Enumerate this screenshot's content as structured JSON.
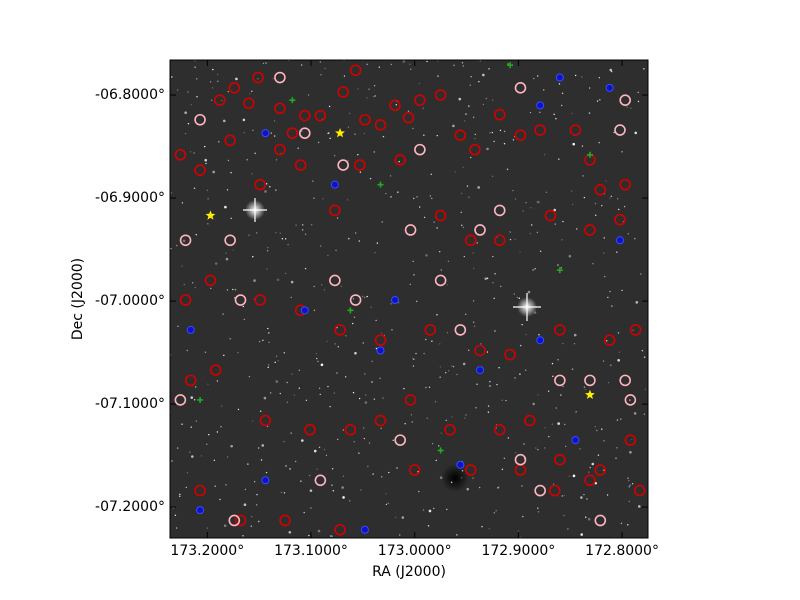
{
  "chart_data": {
    "type": "sky-overlay",
    "x_label": "RA (J2000)",
    "y_label": "Dec (J2000)",
    "xlim": [
      173.236,
      172.775
    ],
    "ylim": [
      -7.23,
      -6.766
    ],
    "xticks": [
      {
        "value": 173.2,
        "label": "173.2000°"
      },
      {
        "value": 173.1,
        "label": "173.1000°"
      },
      {
        "value": 173.0,
        "label": "173.0000°"
      },
      {
        "value": 172.9,
        "label": "172.9000°"
      },
      {
        "value": 172.8,
        "label": "172.8000°"
      }
    ],
    "yticks": [
      {
        "value": -6.8,
        "label": "-06.8000°"
      },
      {
        "value": -6.9,
        "label": "-06.9000°"
      },
      {
        "value": -7.0,
        "label": "-07.0000°"
      },
      {
        "value": -7.1,
        "label": "-07.1000°"
      },
      {
        "value": -7.2,
        "label": "-07.2000°"
      }
    ],
    "series": [
      {
        "color": "#d40000",
        "marker": "circle",
        "x": [
          173.188,
          173.174,
          173.16,
          173.151,
          173.13,
          173.118,
          173.106,
          173.091,
          173.069,
          173.057,
          173.048,
          173.033,
          173.019,
          173.006,
          172.995,
          172.975,
          172.956,
          172.942,
          172.918,
          172.898,
          172.879,
          172.845,
          172.831,
          172.821,
          172.797,
          173.226,
          173.207,
          173.178,
          173.149,
          173.13,
          173.11,
          173.077,
          173.053,
          173.014,
          172.975,
          172.946,
          172.918,
          172.869,
          172.831,
          172.802,
          173.221,
          173.197,
          173.149,
          173.11,
          173.072,
          173.033,
          172.985,
          172.937,
          172.908,
          172.86,
          172.812,
          172.787,
          173.216,
          173.192,
          173.144,
          173.101,
          173.062,
          173.033,
          173.004,
          172.966,
          172.918,
          172.889,
          172.86,
          172.821,
          172.792,
          173.207,
          173.168,
          173.125,
          173.072,
          173.0,
          172.946,
          172.898,
          172.865,
          172.831,
          172.783
        ],
        "y": [
          -6.805,
          -6.793,
          -6.808,
          -6.783,
          -6.813,
          -6.837,
          -6.82,
          -6.82,
          -6.797,
          -6.776,
          -6.824,
          -6.829,
          -6.81,
          -6.822,
          -6.805,
          -6.8,
          -6.839,
          -6.853,
          -6.819,
          -6.839,
          -6.834,
          -6.834,
          -6.863,
          -6.892,
          -6.887,
          -6.858,
          -6.873,
          -6.844,
          -6.887,
          -6.853,
          -6.868,
          -6.912,
          -6.868,
          -6.863,
          -6.917,
          -6.941,
          -6.941,
          -6.917,
          -6.931,
          -6.921,
          -6.999,
          -6.98,
          -6.999,
          -7.009,
          -7.028,
          -7.038,
          -7.028,
          -7.048,
          -7.052,
          -7.028,
          -7.038,
          -7.028,
          -7.077,
          -7.067,
          -7.116,
          -7.125,
          -7.125,
          -7.116,
          -7.096,
          -7.125,
          -7.125,
          -7.116,
          -7.154,
          -7.164,
          -7.135,
          -7.184,
          -7.213,
          -7.213,
          -7.222,
          -7.164,
          -7.164,
          -7.164,
          -7.184,
          -7.174,
          -7.184
        ]
      },
      {
        "color": "#ffb6c1",
        "marker": "circle",
        "x": [
          173.106,
          172.995,
          172.918,
          173.077,
          173.178,
          173.057,
          172.975,
          172.956,
          172.831,
          172.797,
          172.792,
          172.898,
          172.879,
          172.821,
          173.174,
          173.226,
          173.091,
          173.014,
          172.802,
          172.797,
          172.898,
          173.13,
          173.069,
          172.937,
          173.168,
          172.86,
          173.004,
          173.207,
          173.221
        ],
        "y": [
          -6.837,
          -6.853,
          -6.912,
          -6.98,
          -6.941,
          -6.999,
          -6.98,
          -7.028,
          -7.077,
          -7.077,
          -7.096,
          -7.154,
          -7.184,
          -7.213,
          -7.213,
          -7.096,
          -7.174,
          -7.135,
          -6.834,
          -6.805,
          -6.793,
          -6.783,
          -6.868,
          -6.931,
          -6.999,
          -7.077,
          -6.931,
          -6.824,
          -6.941
        ]
      },
      {
        "color": "#1010c8",
        "marker": "dot",
        "x": [
          173.077,
          172.802,
          173.019,
          173.106,
          173.033,
          172.937,
          172.879,
          172.845,
          172.956,
          173.144,
          173.207,
          173.048,
          172.879,
          172.86,
          172.812,
          173.216,
          173.144
        ],
        "y": [
          -6.887,
          -6.941,
          -6.999,
          -7.009,
          -7.048,
          -7.067,
          -7.038,
          -7.135,
          -7.159,
          -7.174,
          -7.203,
          -7.222,
          -6.81,
          -6.783,
          -6.793,
          -7.028,
          -6.837
        ]
      },
      {
        "color": "#22aa22",
        "marker": "plus",
        "x": [
          173.118,
          173.033,
          172.908,
          172.831,
          172.86,
          173.062,
          172.975,
          173.207
        ],
        "y": [
          -6.805,
          -6.887,
          -6.771,
          -6.858,
          -6.97,
          -7.009,
          -7.145,
          -7.096
        ]
      },
      {
        "color": "#ffee00",
        "marker": "star",
        "x": [
          173.072,
          173.197,
          172.831
        ],
        "y": [
          -6.837,
          -6.917,
          -7.091
        ]
      }
    ]
  }
}
